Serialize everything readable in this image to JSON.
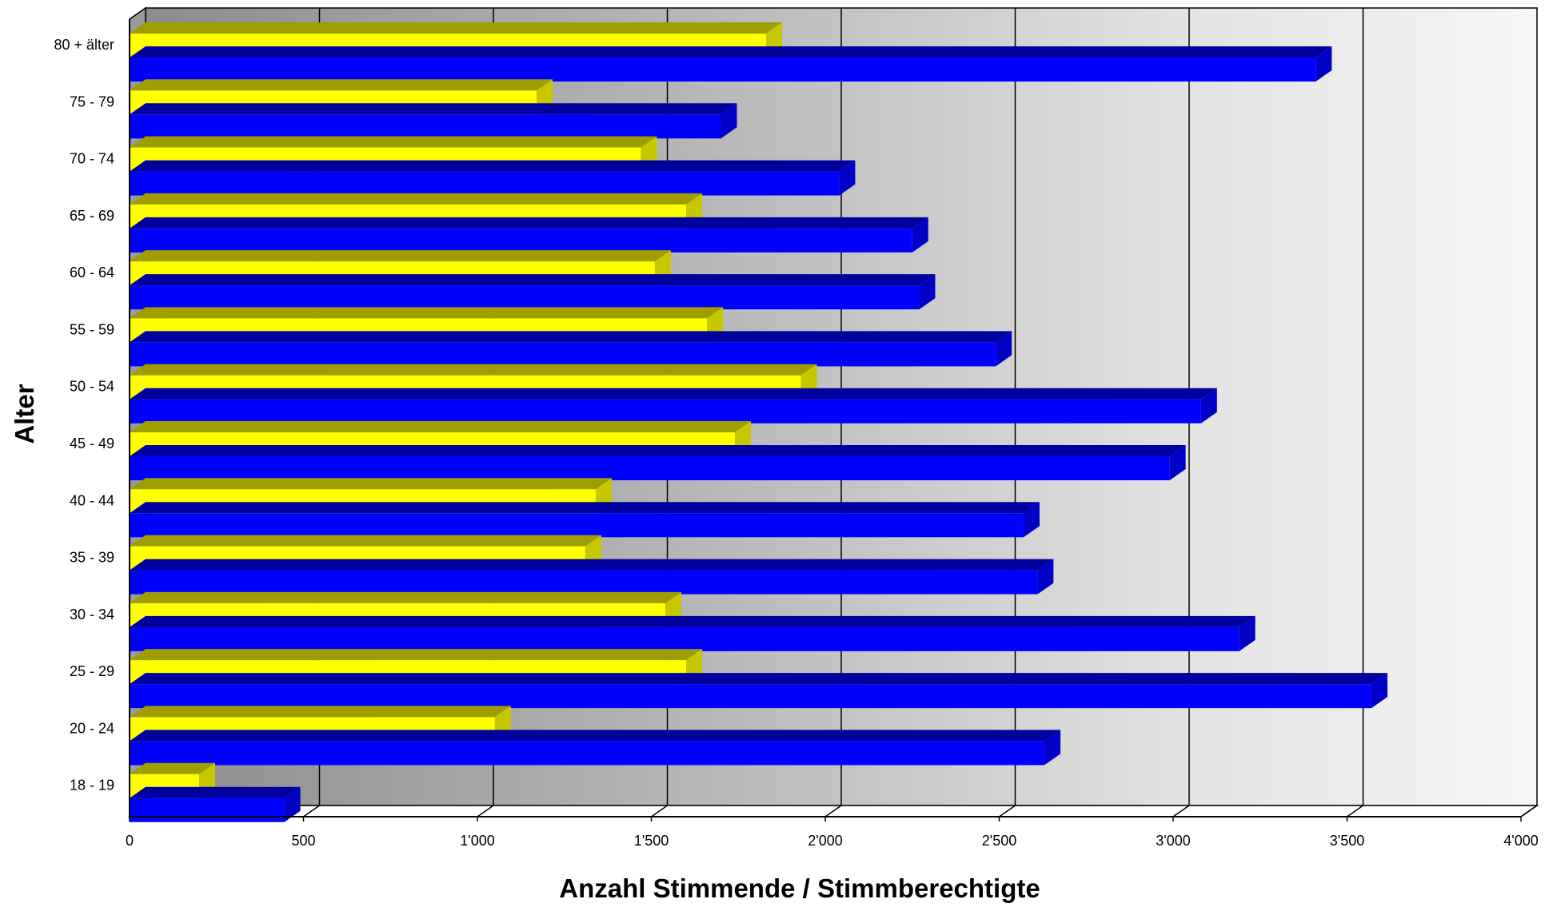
{
  "chart_data": {
    "type": "bar",
    "orientation": "horizontal",
    "three_d": true,
    "xlabel": "Anzahl Stimmende / Stimmberechtigte",
    "ylabel": "Alter",
    "xlim": [
      0,
      4000
    ],
    "x_ticks": [
      0,
      500,
      1000,
      1500,
      2000,
      2500,
      3000,
      3500,
      4000
    ],
    "x_tick_labels": [
      "0",
      "500",
      "1'000",
      "1'500",
      "2'000",
      "2'500",
      "3'000",
      "3'500",
      "4'000"
    ],
    "grid": true,
    "legend": "none",
    "categories": [
      "18 - 19",
      "20 - 24",
      "25 - 29",
      "30 - 34",
      "35 - 39",
      "40 - 44",
      "45 - 49",
      "50 - 54",
      "55 - 59",
      "60 - 64",
      "65 - 69",
      "70 - 74",
      "75 - 79",
      "80 + älter"
    ],
    "series": [
      {
        "color": "#ffff00",
        "values": [
          200,
          1050,
          1600,
          1540,
          1310,
          1340,
          1740,
          1930,
          1660,
          1510,
          1600,
          1470,
          1170,
          1830
        ]
      },
      {
        "color": "#0000ff",
        "values": [
          445,
          2630,
          3570,
          3190,
          2610,
          2570,
          2990,
          3080,
          2490,
          2270,
          2250,
          2040,
          1700,
          3410
        ]
      }
    ]
  }
}
